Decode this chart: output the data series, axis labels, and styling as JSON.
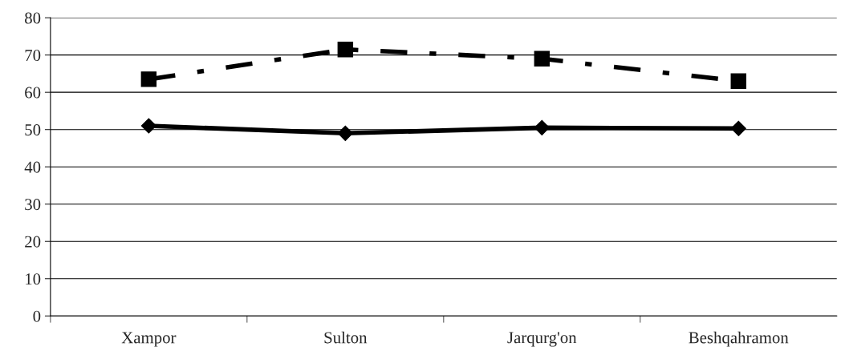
{
  "chart_data": {
    "type": "line",
    "categories": [
      "Xampor",
      "Sulton",
      "Jarqurg'on",
      "Beshqahramon"
    ],
    "series": [
      {
        "color": "#000000",
        "values": [
          63.5,
          71.5,
          69,
          63
        ],
        "marker": "square",
        "line_style": "dashed"
      },
      {
        "color": "#000000",
        "values": [
          51,
          49,
          50.5,
          50.3
        ],
        "marker": "diamond",
        "line_style": "solid"
      }
    ],
    "ylim": [
      0,
      80
    ],
    "yticks": [
      0,
      10,
      20,
      30,
      40,
      50,
      60,
      70,
      80
    ],
    "grid": "y"
  }
}
